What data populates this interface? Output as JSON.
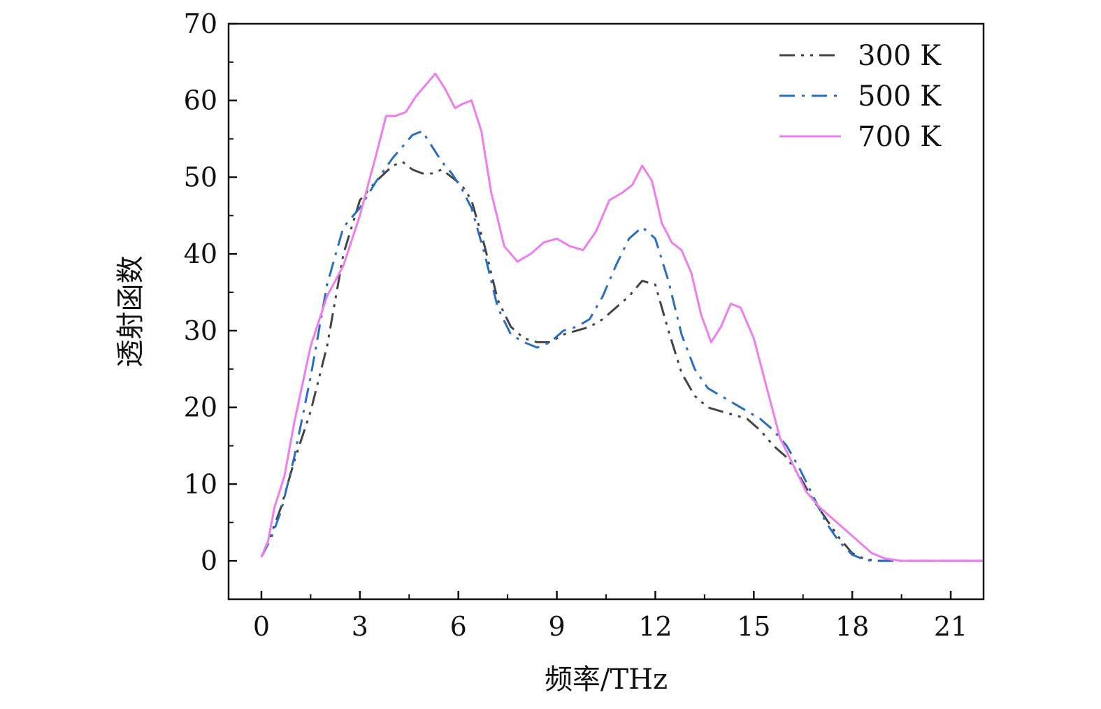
{
  "chart_data": {
    "type": "line",
    "xlabel": "频率/THz",
    "ylabel": "透射函数",
    "xlim": [
      -1,
      22
    ],
    "ylim": [
      -5,
      70
    ],
    "xticks": [
      0,
      3,
      6,
      9,
      12,
      15,
      18,
      21
    ],
    "yticks": [
      0,
      10,
      20,
      30,
      40,
      50,
      60,
      70
    ],
    "grid": false,
    "legend_position": "top-right",
    "series": [
      {
        "name": "300 K",
        "color": "#444444",
        "dash": "dash-dot-dot",
        "x": [
          0,
          0.3,
          0.6,
          1.0,
          1.5,
          2.0,
          2.5,
          3.0,
          3.5,
          4.0,
          4.3,
          4.6,
          4.9,
          5.2,
          5.5,
          5.8,
          6.1,
          6.4,
          6.8,
          7.2,
          7.6,
          8.0,
          8.4,
          8.8,
          9.2,
          9.6,
          10.0,
          10.4,
          10.8,
          11.2,
          11.6,
          12.0,
          12.4,
          12.8,
          13.2,
          13.6,
          14.0,
          14.4,
          14.8,
          15.2,
          15.6,
          16.0,
          16.4,
          16.8,
          17.2,
          17.6,
          18.0,
          18.4,
          18.8,
          19.5,
          20.5,
          22.0
        ],
        "y": [
          0.5,
          3.5,
          7.0,
          13.0,
          19.5,
          28.0,
          40.0,
          47.0,
          49.5,
          51.5,
          52.0,
          51.0,
          50.5,
          50.5,
          51.0,
          50.0,
          49.0,
          47.0,
          41.0,
          34.0,
          30.5,
          29.0,
          28.5,
          28.5,
          29.5,
          30.0,
          30.5,
          31.5,
          33.0,
          34.5,
          36.5,
          36.0,
          30.0,
          24.5,
          21.5,
          20.0,
          19.5,
          19.0,
          18.5,
          17.0,
          15.0,
          13.5,
          11.0,
          8.0,
          5.5,
          3.0,
          1.0,
          0.2,
          0,
          0,
          0,
          0
        ]
      },
      {
        "name": "500 K",
        "color": "#2a6ec2",
        "dash": "dash-dot",
        "x": [
          0,
          0.3,
          0.6,
          1.0,
          1.5,
          2.0,
          2.5,
          3.0,
          3.5,
          4.0,
          4.3,
          4.6,
          4.9,
          5.2,
          5.5,
          5.8,
          6.1,
          6.4,
          6.8,
          7.2,
          7.6,
          8.0,
          8.4,
          8.8,
          9.2,
          9.6,
          10.0,
          10.4,
          10.8,
          11.2,
          11.6,
          12.0,
          12.4,
          12.8,
          13.2,
          13.6,
          14.0,
          14.4,
          14.8,
          15.2,
          15.6,
          16.0,
          16.4,
          16.8,
          17.2,
          17.6,
          18.0,
          18.4,
          18.8,
          19.5,
          20.5,
          22.0
        ],
        "y": [
          0.5,
          3.0,
          6.5,
          13.5,
          24.0,
          36.0,
          43.5,
          46.0,
          49.5,
          52.5,
          54.0,
          55.5,
          56.0,
          54.0,
          52.0,
          50.5,
          48.5,
          46.0,
          40.0,
          33.0,
          29.5,
          28.5,
          27.8,
          28.5,
          30.0,
          30.5,
          31.5,
          34.5,
          38.5,
          42.0,
          43.5,
          42.0,
          36.5,
          29.5,
          25.0,
          22.5,
          21.5,
          20.5,
          19.5,
          18.5,
          17.0,
          15.0,
          12.0,
          8.5,
          5.0,
          2.5,
          0.8,
          0.1,
          0,
          0,
          0,
          0
        ]
      },
      {
        "name": "700 K",
        "color": "#ee7eee",
        "dash": "solid",
        "x": [
          0,
          0.2,
          0.4,
          0.7,
          1.0,
          1.5,
          2.0,
          2.5,
          3.0,
          3.5,
          3.8,
          4.1,
          4.4,
          4.7,
          5.0,
          5.3,
          5.6,
          5.9,
          6.1,
          6.4,
          6.7,
          7.0,
          7.4,
          7.8,
          8.2,
          8.6,
          9.0,
          9.4,
          9.8,
          10.2,
          10.6,
          11.0,
          11.3,
          11.6,
          11.9,
          12.2,
          12.5,
          12.8,
          13.1,
          13.4,
          13.7,
          14.0,
          14.3,
          14.6,
          15.0,
          15.4,
          15.8,
          16.2,
          16.6,
          17.0,
          17.4,
          17.8,
          18.2,
          18.6,
          19.0,
          19.5,
          20.5,
          22.0
        ],
        "y": [
          0.5,
          2.5,
          7.0,
          11.0,
          18.0,
          28.0,
          34.5,
          38.5,
          45.0,
          53.0,
          58.0,
          58.0,
          58.5,
          60.5,
          62.0,
          63.5,
          61.5,
          59.0,
          59.5,
          60.0,
          56.0,
          48.0,
          41.0,
          39.0,
          40.0,
          41.5,
          42.0,
          41.0,
          40.5,
          43.0,
          47.0,
          48.0,
          49.0,
          51.5,
          49.5,
          44.0,
          41.5,
          40.5,
          37.5,
          32.0,
          28.5,
          30.5,
          33.5,
          33.0,
          29.0,
          22.5,
          16.0,
          12.5,
          9.0,
          7.0,
          5.5,
          4.0,
          2.5,
          1.0,
          0.3,
          0,
          0,
          0
        ]
      }
    ]
  }
}
